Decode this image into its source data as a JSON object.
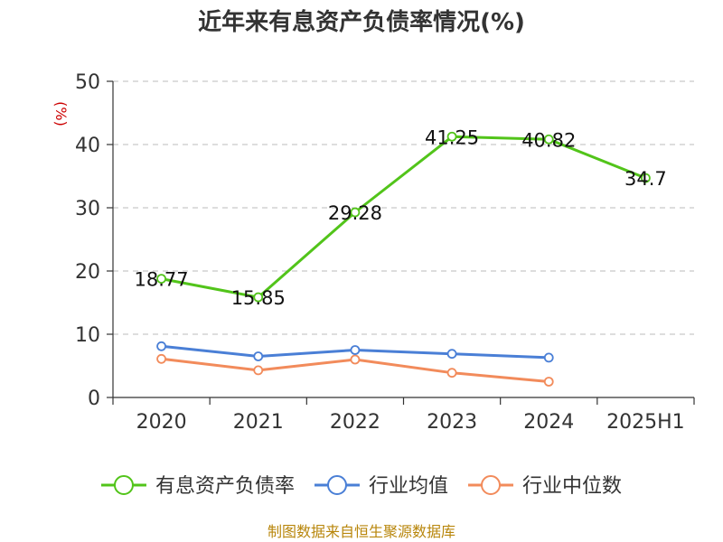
{
  "chart_data": {
    "type": "line",
    "title": "近年来有息资产负债率情况(%)",
    "ylabel": "(%)",
    "categories": [
      "2020",
      "2021",
      "2022",
      "2023",
      "2024",
      "2025H1"
    ],
    "ylim": [
      0,
      50
    ],
    "yticks": [
      0,
      10,
      20,
      30,
      40,
      50
    ],
    "grid": true,
    "legend_position": "bottom",
    "series": [
      {
        "name": "有息资产负债率",
        "color": "#52c41a",
        "values": [
          18.77,
          15.85,
          29.28,
          41.25,
          40.82,
          34.7
        ],
        "labels": [
          "18.77",
          "15.85",
          "29.28",
          "41.25",
          "40.82",
          "34.7"
        ]
      },
      {
        "name": "行业均值",
        "color": "#4a7fd6",
        "values": [
          8.1,
          6.5,
          7.5,
          6.9,
          6.3,
          null
        ]
      },
      {
        "name": "行业中位数",
        "color": "#f28b5b",
        "values": [
          6.1,
          4.3,
          6.0,
          3.9,
          2.5,
          null
        ]
      }
    ],
    "source": "制图数据来自恒生聚源数据库"
  }
}
